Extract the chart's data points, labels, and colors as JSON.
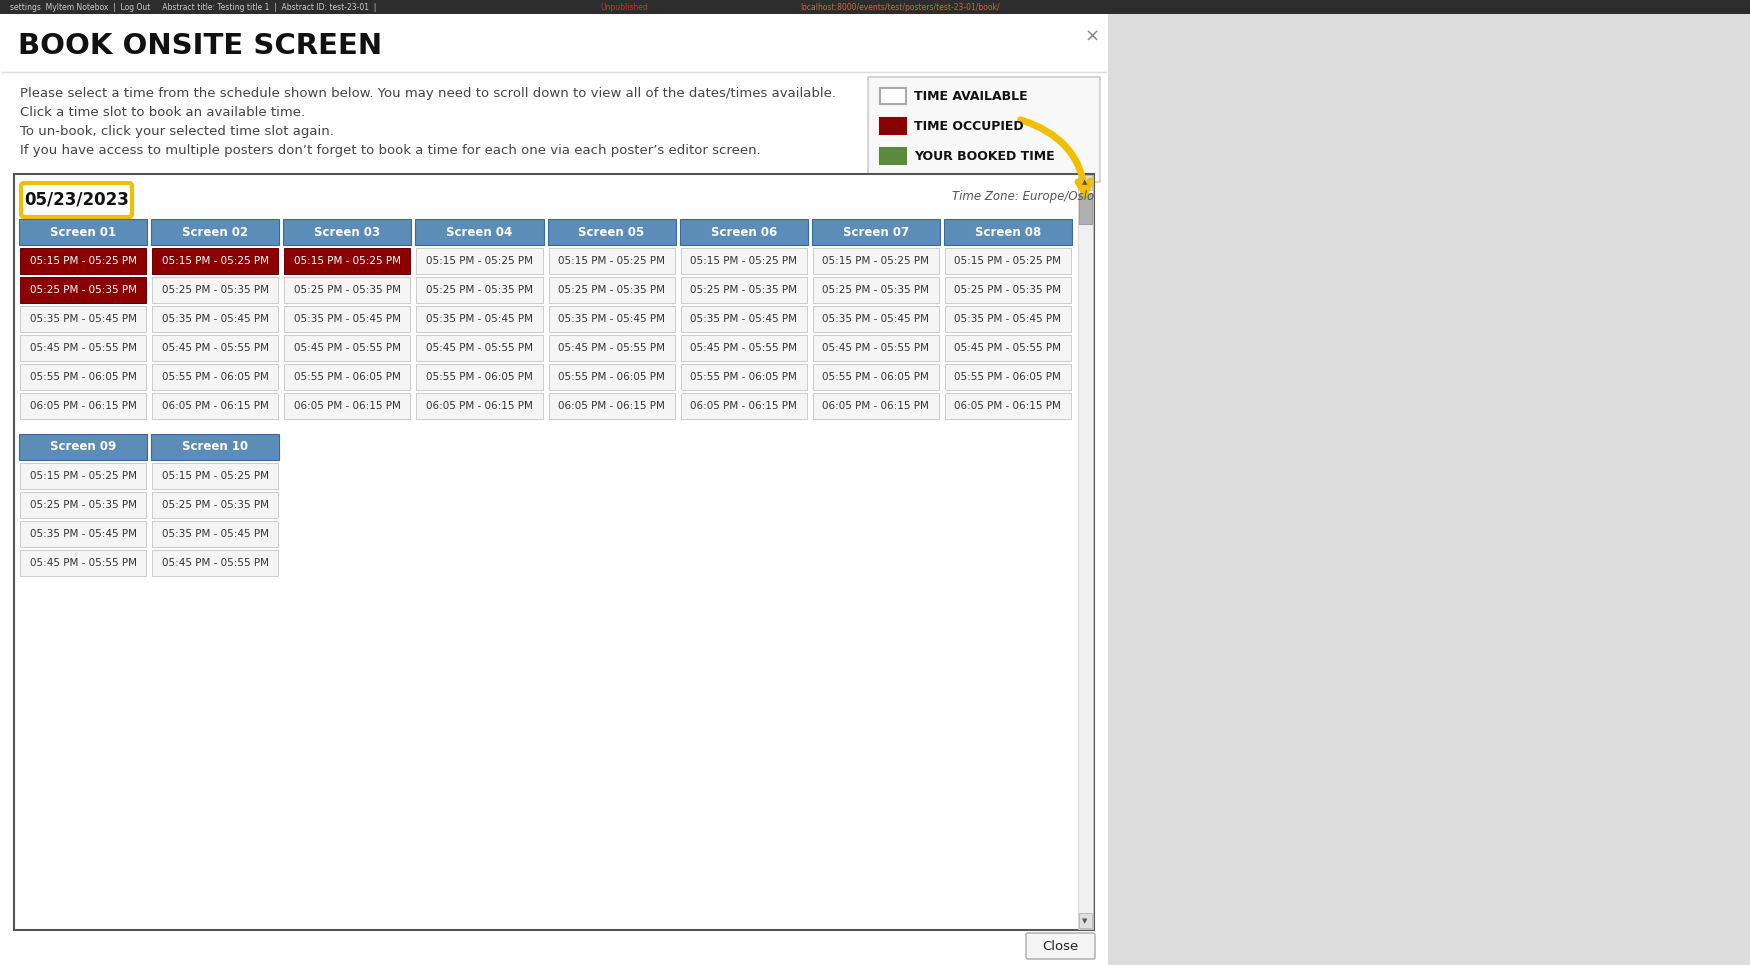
{
  "title": "BOOK ONSITE SCREEN",
  "description_lines": [
    "Please select a time from the schedule shown below. You may need to scroll down to view all of the dates/times available.",
    "Click a time slot to book an available time.",
    "To un-book, click your selected time slot again.",
    "If you have access to multiple posters don’t forget to book a time for each one via each poster’s editor screen."
  ],
  "legend_items": [
    {
      "label": "TIME AVAILABLE",
      "color": "#ffffff",
      "border": "#aaaaaa"
    },
    {
      "label": "TIME OCCUPIED",
      "color": "#8b0000",
      "border": "#8b0000"
    },
    {
      "label": "YOUR BOOKED TIME",
      "color": "#5a8a3a",
      "border": "#5a8a3a"
    }
  ],
  "timezone_text": "Time Zone: Europe/Oslo",
  "date_label": "05/23/2023",
  "screens": [
    "Screen 01",
    "Screen 02",
    "Screen 03",
    "Screen 04",
    "Screen 05",
    "Screen 06",
    "Screen 07",
    "Screen 08",
    "Screen 09",
    "Screen 10"
  ],
  "time_slots": [
    "05:15 PM - 05:25 PM",
    "05:25 PM - 05:35 PM",
    "05:35 PM - 05:45 PM",
    "05:45 PM - 05:55 PM",
    "05:55 PM - 06:05 PM",
    "06:05 PM - 06:15 PM"
  ],
  "time_slots_short": [
    "05:15 PM - 05:25 PM",
    "05:25 PM - 05:35 PM",
    "05:35 PM - 05:45 PM",
    "05:45 PM - 05:55 PM"
  ],
  "slot_colors": {
    "red": "#8b0000",
    "green": "#5a8a3a",
    "available_bg": "#f5f5f5",
    "available_border": "#cccccc",
    "header_blue_top": "#5b8db8",
    "header_blue_bot": "#3a6a9d"
  },
  "screen_slot_colors": {
    "Screen 01": [
      "red",
      "red",
      "available",
      "available",
      "available",
      "available"
    ],
    "Screen 02": [
      "red",
      "available",
      "available",
      "available",
      "available",
      "available"
    ],
    "Screen 03": [
      "red",
      "available",
      "available",
      "available",
      "available",
      "available"
    ],
    "Screen 04": [
      "available",
      "available",
      "available",
      "available",
      "available",
      "available"
    ],
    "Screen 05": [
      "available",
      "available",
      "available",
      "available",
      "available",
      "available"
    ],
    "Screen 06": [
      "available",
      "available",
      "available",
      "available",
      "available",
      "available"
    ],
    "Screen 07": [
      "available",
      "available",
      "available",
      "available",
      "available",
      "available"
    ],
    "Screen 08": [
      "available",
      "available",
      "available",
      "available",
      "available",
      "available"
    ],
    "Screen 09": [
      "available",
      "available",
      "available",
      "available"
    ],
    "Screen 10": [
      "available",
      "available",
      "available",
      "available"
    ]
  },
  "bg_color": "#ffffff",
  "page_bg": "#dddddd",
  "arrow_color": "#f0c000",
  "date_highlight_color": "#f0c000",
  "toolbar_bg": "#2d2d2d",
  "toolbar_text": "#cccccc",
  "toolbar_red": "#cc3333",
  "toolbar_green": "#44aa44",
  "close_text": "Close",
  "x_btn": "×"
}
